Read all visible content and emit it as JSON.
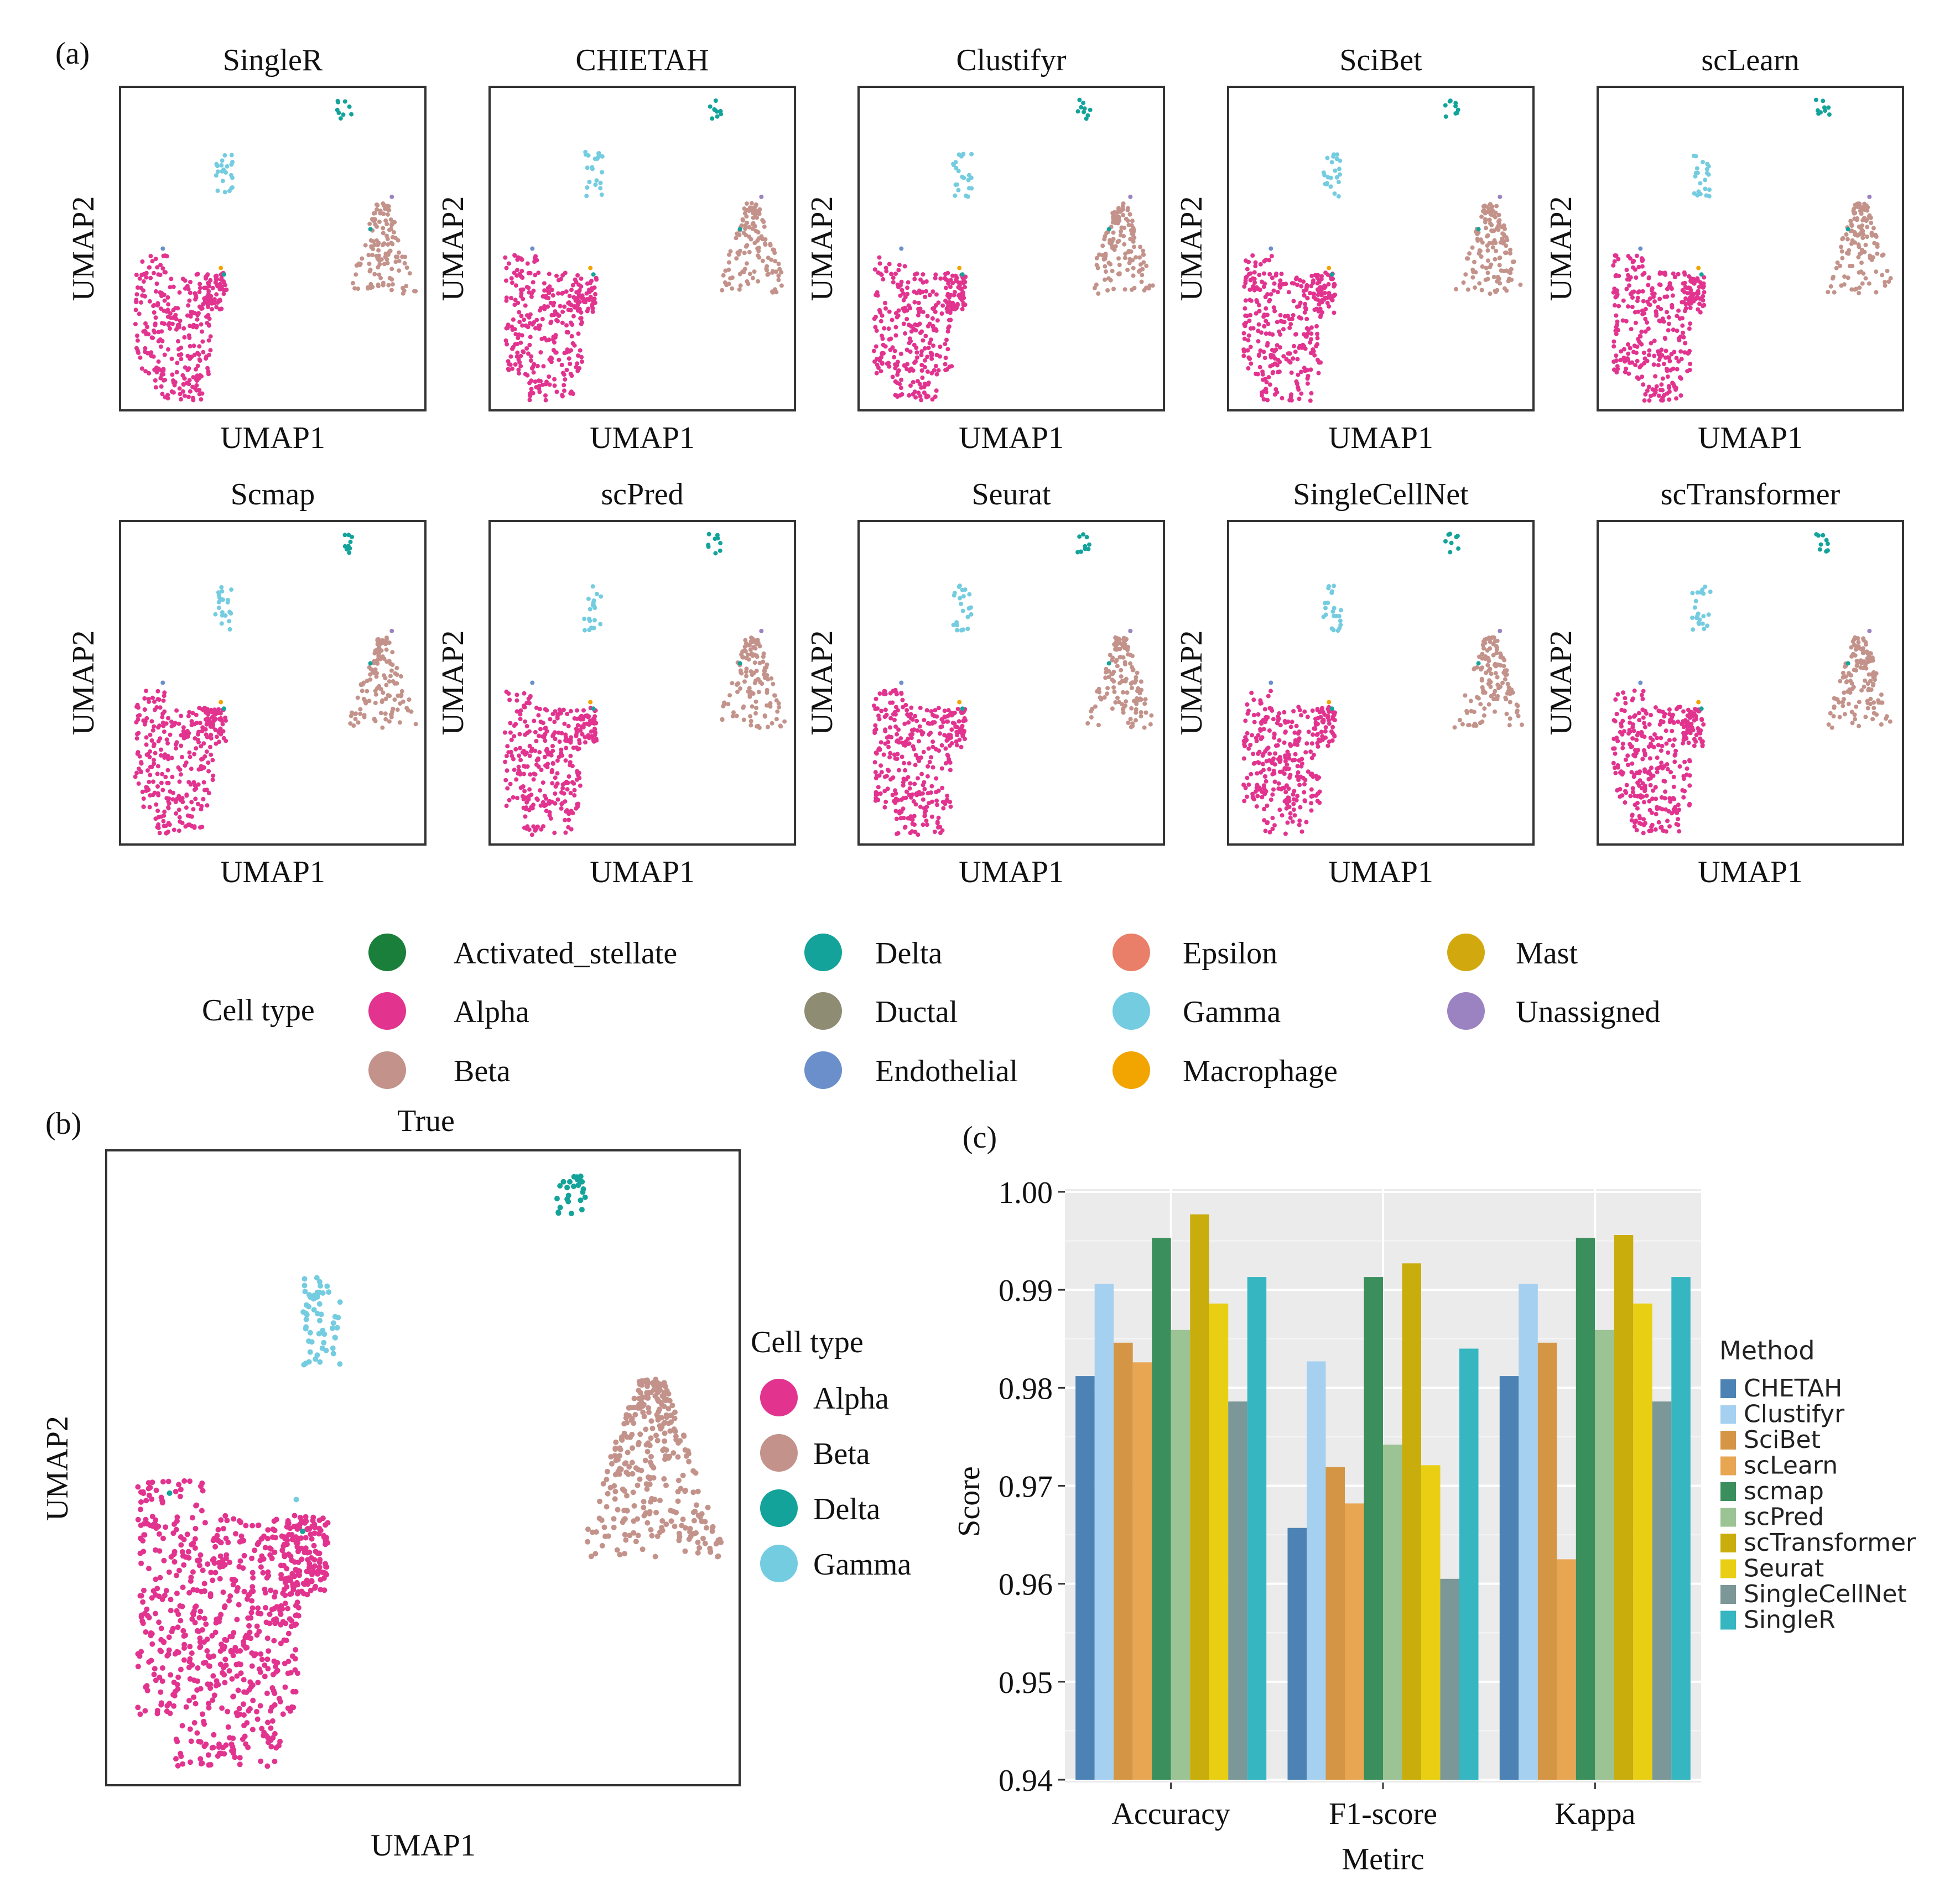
{
  "labels": {
    "a": "(a)",
    "b": "(b)",
    "c": "(c)"
  },
  "colors": {
    "Activated_stellate": "#1a7f3a",
    "Alpha": "#e2338f",
    "Beta": "#c3938b",
    "Delta": "#13a39a",
    "Ductal": "#8e8c73",
    "Endothelial": "#6b8fcb",
    "Epsilon": "#ea7f69",
    "Gamma": "#74cce0",
    "Macrophage": "#f2a400",
    "Mast": "#d2a80f",
    "Unassigned": "#9b82c1"
  },
  "panel_a": {
    "xlabel": "UMAP1",
    "ylabel": "UMAP2",
    "methods": [
      "SingleR",
      "CHIETAH",
      "Clustifyr",
      "SciBet",
      "scLearn",
      "Scmap",
      "scPred",
      "Seurat",
      "SingleCellNet",
      "scTransformer"
    ],
    "legend": {
      "title": "Cell type",
      "items": [
        "Activated_stellate",
        "Alpha",
        "Beta",
        "Delta",
        "Ductal",
        "Endothelial",
        "Epsilon",
        "Gamma",
        "Macrophage",
        "Mast",
        "Unassigned"
      ]
    }
  },
  "panel_b": {
    "title": "True",
    "xlabel": "UMAP1",
    "ylabel": "UMAP2",
    "legend": {
      "title": "Cell type",
      "items": [
        "Alpha",
        "Beta",
        "Delta",
        "Gamma"
      ]
    }
  },
  "chart_data": {
    "type": "bar",
    "categories": [
      "Accuracy",
      "F1-score",
      "Kappa"
    ],
    "xlabel": "Metirc",
    "ylabel": "Score",
    "ylim": [
      0.94,
      1.0
    ],
    "yticks": [
      "0.94",
      "0.95",
      "0.96",
      "0.97",
      "0.98",
      "0.99",
      "1.00"
    ],
    "legend_title": "Method",
    "legend_position": "right",
    "grid": true,
    "series": [
      {
        "name": "CHETAH",
        "color": "#4d82b4",
        "values": [
          0.9812,
          0.9657,
          0.9812
        ]
      },
      {
        "name": "Clustifyr",
        "color": "#a6d0ef",
        "values": [
          0.9906,
          0.9827,
          0.9906
        ]
      },
      {
        "name": "SciBet",
        "color": "#d49645",
        "values": [
          0.9846,
          0.9719,
          0.9846
        ]
      },
      {
        "name": "scLearn",
        "color": "#e8a653",
        "values": [
          0.9826,
          0.9682,
          0.9625
        ]
      },
      {
        "name": "scmap",
        "color": "#3b8f5c",
        "values": [
          0.9953,
          0.9913,
          0.9953
        ]
      },
      {
        "name": "scPred",
        "color": "#9cc394",
        "values": [
          0.9859,
          0.9742,
          0.9859
        ]
      },
      {
        "name": "scTransformer",
        "color": "#c9ad0c",
        "values": [
          0.9977,
          0.9927,
          0.9956
        ]
      },
      {
        "name": "Seurat",
        "color": "#e9cf14",
        "values": [
          0.9886,
          0.9721,
          0.9886
        ]
      },
      {
        "name": "SingleCellNet",
        "color": "#7b9797",
        "values": [
          0.9786,
          0.9605,
          0.9786
        ]
      },
      {
        "name": "SingleR",
        "color": "#36b6c1",
        "values": [
          0.9913,
          0.984,
          0.9913
        ]
      }
    ]
  }
}
